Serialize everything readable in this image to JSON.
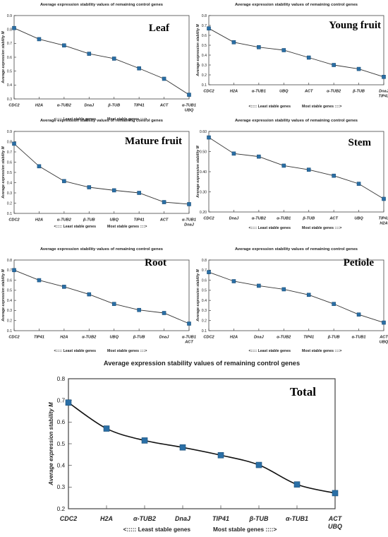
{
  "chart_data": [
    {
      "type": "line",
      "title": "Average expression stability values of remaining control genes",
      "panel_label": "Leaf",
      "ylabel": "Average expression stability M",
      "footer_left": "<::::: Least stable genes",
      "footer_right": "Most stable genes ::::>",
      "ylim": [
        0.3,
        0.9
      ],
      "yticks": [
        "0.3",
        "0.4",
        "0.5",
        "0.6",
        "0.7",
        "0.8",
        "0.9"
      ],
      "categories": [
        [
          "CDC2"
        ],
        [
          "H2A"
        ],
        [
          "α-TUB2"
        ],
        [
          "DnaJ"
        ],
        [
          "β-TUB"
        ],
        [
          "TIP41"
        ],
        [
          "ACT"
        ],
        [
          "α-TUB1",
          "UBQ"
        ]
      ],
      "values": [
        0.81,
        0.73,
        0.685,
        0.625,
        0.59,
        0.52,
        0.445,
        0.33
      ],
      "line_color": "#333333",
      "marker_color": "#2a6fa6"
    },
    {
      "type": "line",
      "title": "Average expression stability values of remaining control genes",
      "panel_label": "Young fruit",
      "ylabel": "Average expression stability M",
      "footer_left": "<::::: Least stable genes",
      "footer_right": "Most stable genes ::::>",
      "ylim": [
        0.1,
        0.8
      ],
      "yticks": [
        "0.1",
        "0.2",
        "0.3",
        "0.4",
        "0.5",
        "0.6",
        "0.7",
        "0.8"
      ],
      "categories": [
        [
          "CDC2"
        ],
        [
          "H2A"
        ],
        [
          "α-TUB1"
        ],
        [
          "UBQ"
        ],
        [
          "ACT"
        ],
        [
          "α-TUB2"
        ],
        [
          "β-TUB"
        ],
        [
          "DnaJ",
          "TIP41"
        ]
      ],
      "values": [
        0.67,
        0.53,
        0.48,
        0.45,
        0.375,
        0.3,
        0.26,
        0.18
      ],
      "line_color": "#333333",
      "marker_color": "#2a6fa6"
    },
    {
      "type": "line",
      "title": "Average expression stability values of remaining control genes",
      "panel_label": "Mature fruit",
      "ylabel": "Average expression stability M",
      "footer_left": "<::::: Least stable genes",
      "footer_right": "Most stable genes ::::>",
      "ylim": [
        0.1,
        0.9
      ],
      "yticks": [
        "0.1",
        "0.2",
        "0.3",
        "0.4",
        "0.5",
        "0.6",
        "0.7",
        "0.8",
        "0.9"
      ],
      "categories": [
        [
          "CDC2"
        ],
        [
          "H2A"
        ],
        [
          "α-TUB2"
        ],
        [
          "β-TUB"
        ],
        [
          "UBQ"
        ],
        [
          "TIP41"
        ],
        [
          "ACT"
        ],
        [
          "α-TUB1",
          "DnaJ"
        ]
      ],
      "values": [
        0.78,
        0.56,
        0.415,
        0.355,
        0.325,
        0.3,
        0.21,
        0.19
      ],
      "line_color": "#333333",
      "marker_color": "#2a6fa6"
    },
    {
      "type": "line",
      "title": "Average expression stability values of remaining control genes",
      "panel_label": "Stem",
      "ylabel": "Average expression stability M",
      "footer_left": "<::::: Least stable genes",
      "footer_right": "Most stable genes ::::>",
      "ylim": [
        0.2,
        0.6
      ],
      "yticks": [
        "0.20",
        "0.30",
        "0.40",
        "0.50",
        "0.60"
      ],
      "categories": [
        [
          "CDC2"
        ],
        [
          "DnaJ"
        ],
        [
          "α-TUB2"
        ],
        [
          "α-TUB1"
        ],
        [
          "β-TUB"
        ],
        [
          "ACT"
        ],
        [
          "UBQ"
        ],
        [
          "TIP41",
          "H2A"
        ]
      ],
      "values": [
        0.57,
        0.49,
        0.475,
        0.43,
        0.41,
        0.38,
        0.34,
        0.265
      ],
      "line_color": "#333333",
      "marker_color": "#2a6fa6"
    },
    {
      "type": "line",
      "title": "Average expression stability values of remaining control genes",
      "panel_label": "Root",
      "ylabel": "Average expression stability M",
      "footer_left": "<::::: Least stable genes",
      "footer_right": "Most stable genes ::::>",
      "ylim": [
        0.1,
        0.8
      ],
      "yticks": [
        "0.1",
        "0.2",
        "0.3",
        "0.4",
        "0.5",
        "0.6",
        "0.7",
        "0.8"
      ],
      "categories": [
        [
          "CDC2"
        ],
        [
          "TIP41"
        ],
        [
          "H2A"
        ],
        [
          "α-TUB2"
        ],
        [
          "UBQ"
        ],
        [
          "β-TUB"
        ],
        [
          "DnaJ"
        ],
        [
          "α-TUB1",
          "ACT"
        ]
      ],
      "values": [
        0.7,
        0.6,
        0.535,
        0.46,
        0.365,
        0.305,
        0.275,
        0.17
      ],
      "line_color": "#333333",
      "marker_color": "#2a6fa6"
    },
    {
      "type": "line",
      "title": "Average expression stability values of remaining control genes",
      "panel_label": "Petiole",
      "ylabel": "Average expression stability M",
      "footer_left": "<::::: Least stable genes",
      "footer_right": "Most stable genes ::::>",
      "ylim": [
        0.1,
        0.8
      ],
      "yticks": [
        "0.1",
        "0.2",
        "0.3",
        "0.4",
        "0.5",
        "0.6",
        "0.7",
        "0.8"
      ],
      "categories": [
        [
          "CDC2"
        ],
        [
          "H2A"
        ],
        [
          "DnaJ"
        ],
        [
          "α-TUB2"
        ],
        [
          "TIP41"
        ],
        [
          "β-TUB"
        ],
        [
          "α-TUB1"
        ],
        [
          "ACT",
          "UBQ"
        ]
      ],
      "values": [
        0.68,
        0.59,
        0.545,
        0.51,
        0.455,
        0.365,
        0.26,
        0.18
      ],
      "line_color": "#333333",
      "marker_color": "#2a6fa6"
    },
    {
      "type": "line",
      "title": "Average expression stability values of remaining control genes",
      "panel_label": "Total",
      "ylabel": "Average expression stability M",
      "footer_left": "<:::::  Least stable genes",
      "footer_right": "Most stable genes ::::>",
      "ylim": [
        0.2,
        0.8
      ],
      "yticks": [
        "0.2",
        "0.3",
        "0.4",
        "0.5",
        "0.6",
        "0.7",
        "0.8"
      ],
      "categories": [
        [
          "CDC2"
        ],
        [
          "H2A"
        ],
        [
          "α-TUB2"
        ],
        [
          "DnaJ"
        ],
        [
          "TIP41"
        ],
        [
          "β-TUB"
        ],
        [
          "α-TUB1"
        ],
        [
          "ACT",
          "UBQ"
        ]
      ],
      "values": [
        0.69,
        0.57,
        0.515,
        0.483,
        0.447,
        0.402,
        0.312,
        0.272
      ],
      "line_color": "#111111",
      "marker_color": "#2a6fa6"
    }
  ]
}
